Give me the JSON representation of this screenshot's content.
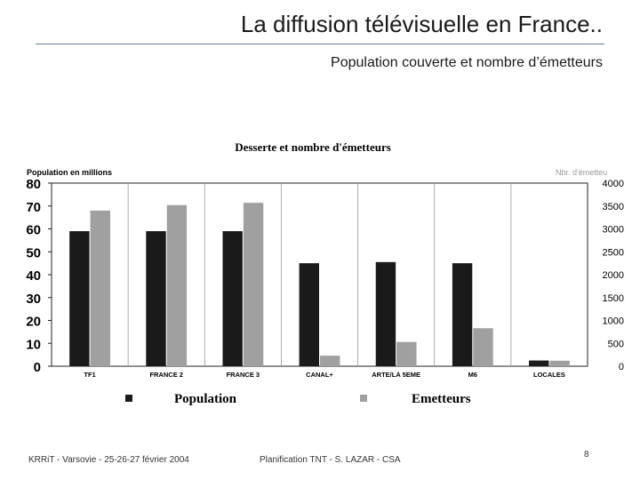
{
  "slide": {
    "title": "La diffusion télévisuelle en France..",
    "subtitle": "Population couverte et nombre d’émetteurs"
  },
  "footer": {
    "left": "KRRiT - Varsovie - 25-26-27 février 2004",
    "center": "Planification TNT - S. LAZAR - CSA",
    "page": "8"
  },
  "chart_data": {
    "type": "bar",
    "title": "Desserte et nombre d'émetteurs",
    "ylabel": "Population en millions",
    "y2label": "Nbr. d'émetteu",
    "categories": [
      "TF1",
      "FRANCE 2",
      "FRANCE 3",
      "CANAL+",
      "ARTE/LA 5EME",
      "M6",
      "LOCALES"
    ],
    "ylim": [
      0,
      80
    ],
    "y2lim": [
      0,
      4000
    ],
    "yticks": [
      "0",
      "10",
      "20",
      "30",
      "40",
      "50",
      "60",
      "70",
      "80"
    ],
    "y2ticks": [
      "0",
      "500",
      "1000",
      "1500",
      "2000",
      "2500",
      "3000",
      "3500",
      "4000"
    ],
    "grid": "vertical",
    "legend": "bottom",
    "series": [
      {
        "name": "Population",
        "axis": "left",
        "color": "#1a1a1a",
        "values": [
          59,
          59,
          59,
          45,
          45.5,
          45,
          2.5
        ]
      },
      {
        "name": "Emetteurs",
        "axis": "right",
        "color": "#a0a0a0",
        "values": [
          3400,
          3520,
          3570,
          230,
          530,
          830,
          120
        ]
      }
    ]
  }
}
